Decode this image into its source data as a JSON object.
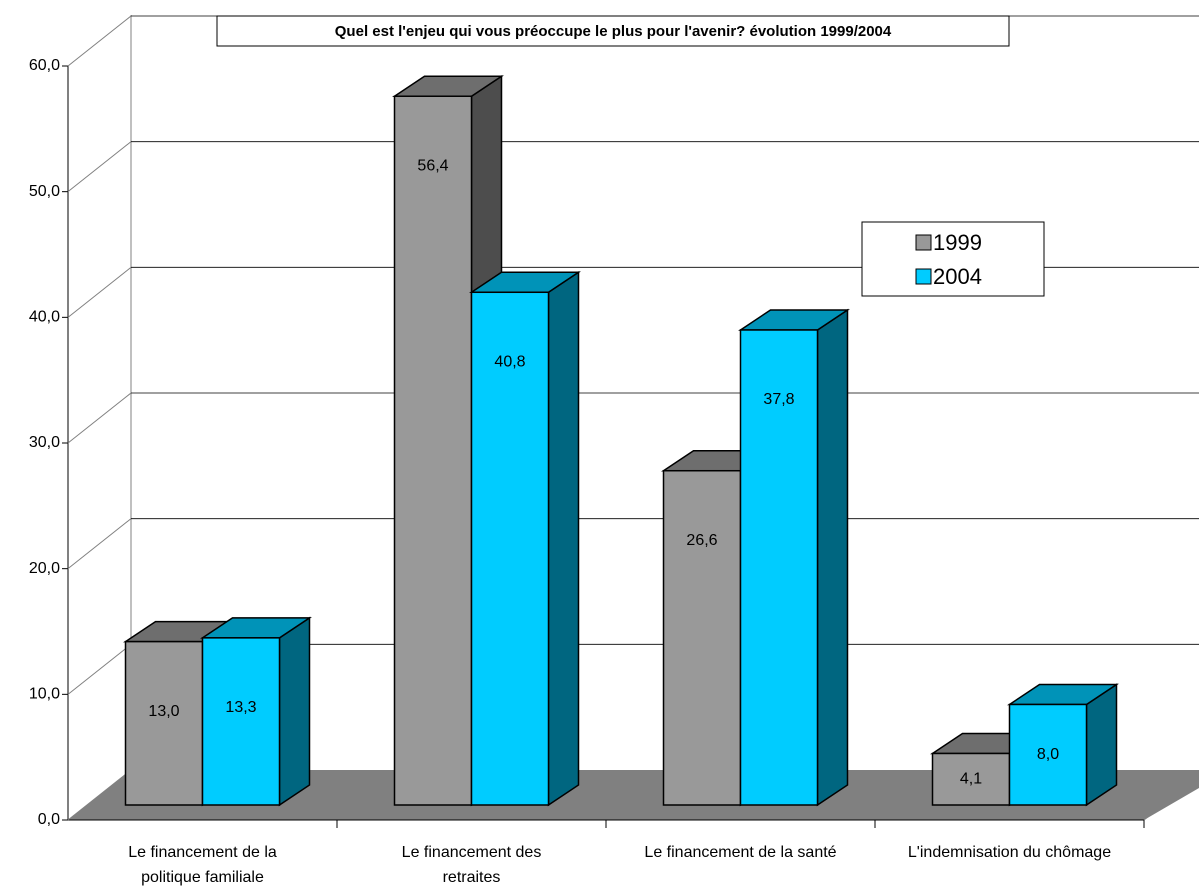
{
  "chart_data": {
    "type": "bar3d",
    "title": "Quel est l'enjeu qui vous préoccupe le plus pour l'avenir?  évolution 1999/2004",
    "categories": [
      "Le financement de la politique familiale",
      "Le financement des retraites",
      "Le financement de la santé",
      "L'indemnisation du chômage"
    ],
    "series": [
      {
        "name": "1999",
        "color": "#999999",
        "values": [
          13.0,
          56.4,
          26.6,
          4.1
        ],
        "value_labels": [
          "13,0",
          "56,4",
          "26,6",
          "4,1"
        ]
      },
      {
        "name": "2004",
        "color": "#00ccff",
        "values": [
          13.3,
          40.8,
          37.8,
          8.0
        ],
        "value_labels": [
          "13,3",
          "40,8",
          "37,8",
          "8,0"
        ]
      }
    ],
    "ylim": [
      0,
      60
    ],
    "yticks": [
      {
        "value": 0,
        "label": "0,0"
      },
      {
        "value": 10,
        "label": "10,0"
      },
      {
        "value": 20,
        "label": "20,0"
      },
      {
        "value": 30,
        "label": "30,0"
      },
      {
        "value": 40,
        "label": "40,0"
      },
      {
        "value": 50,
        "label": "50,0"
      },
      {
        "value": 60,
        "label": "60,0"
      }
    ],
    "grid": true,
    "legend": "right"
  }
}
